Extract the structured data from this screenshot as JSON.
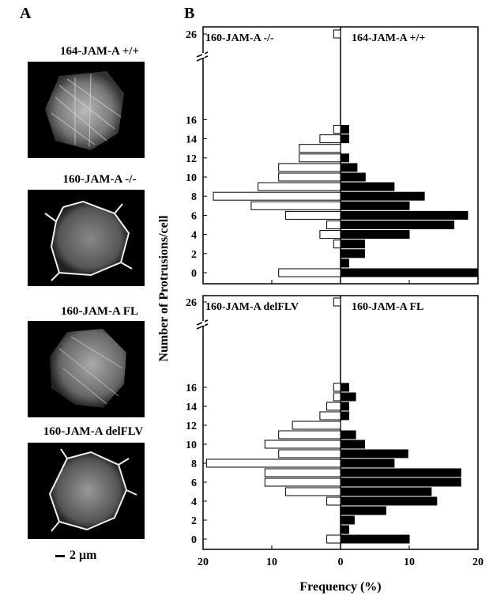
{
  "panels": {
    "a_label": "A",
    "b_label": "B"
  },
  "cells": [
    {
      "title": "164-JAM-A +/+"
    },
    {
      "title": "160-JAM-A -/-"
    },
    {
      "title": "160-JAM-A FL"
    },
    {
      "title": "160-JAM-A delFLV"
    }
  ],
  "scale_bar": {
    "label": "2 μm"
  },
  "chart_data": [
    {
      "type": "bar",
      "orientation": "horizontal-mirrored",
      "ylabel": "Number of Protrusions/cell",
      "xlabel": "Frequency (%)",
      "y_ticks": [
        "0",
        "2",
        "4",
        "6",
        "8",
        "10",
        "12",
        "14",
        "16",
        "26"
      ],
      "x_ticks": [
        "20",
        "10",
        "0",
        "10",
        "20"
      ],
      "xlim": [
        -20,
        20
      ],
      "categories": [
        "0",
        "1",
        "2",
        "3",
        "4",
        "5",
        "6",
        "7",
        "8",
        "9",
        "10",
        "11",
        "12",
        "13",
        "14",
        "15",
        "16",
        "26"
      ],
      "series": [
        {
          "name": "160-JAM-A -/-",
          "side": "left",
          "color": "#ffffff",
          "values": [
            9,
            0,
            0,
            1,
            3,
            2,
            8,
            13,
            18.5,
            12,
            9,
            9,
            6,
            6,
            3,
            1,
            0,
            1
          ]
        },
        {
          "name": "164-JAM-A +/+",
          "side": "right",
          "color": "#000000",
          "values": [
            20,
            1.2,
            3.5,
            3.5,
            10,
            16.5,
            18.5,
            10,
            12.2,
            7.8,
            3.6,
            2.4,
            1.2,
            0,
            1.2,
            1.2,
            0,
            0
          ]
        }
      ]
    },
    {
      "type": "bar",
      "orientation": "horizontal-mirrored",
      "ylabel": "Number of Protrusions/cell",
      "xlabel": "Frequency (%)",
      "y_ticks": [
        "0",
        "2",
        "4",
        "6",
        "8",
        "10",
        "12",
        "14",
        "16",
        "26"
      ],
      "x_ticks": [
        "20",
        "10",
        "0",
        "10",
        "20"
      ],
      "xlim": [
        -20,
        20
      ],
      "categories": [
        "0",
        "1",
        "2",
        "3",
        "4",
        "5",
        "6",
        "7",
        "8",
        "9",
        "10",
        "11",
        "12",
        "13",
        "14",
        "15",
        "16",
        "26"
      ],
      "series": [
        {
          "name": "160-JAM-A delFLV",
          "side": "left",
          "color": "#ffffff",
          "values": [
            2,
            0,
            0,
            0,
            2,
            8,
            11,
            11,
            19.5,
            9,
            11,
            9,
            7,
            3,
            2,
            1,
            1,
            1
          ]
        },
        {
          "name": "160-JAM-A FL",
          "side": "right",
          "color": "#000000",
          "values": [
            10,
            1.2,
            2,
            6.6,
            14,
            13.2,
            17.5,
            17.5,
            7.8,
            9.8,
            3.5,
            2.2,
            0,
            1.2,
            1.2,
            2.2,
            1.2,
            0
          ]
        }
      ]
    }
  ]
}
